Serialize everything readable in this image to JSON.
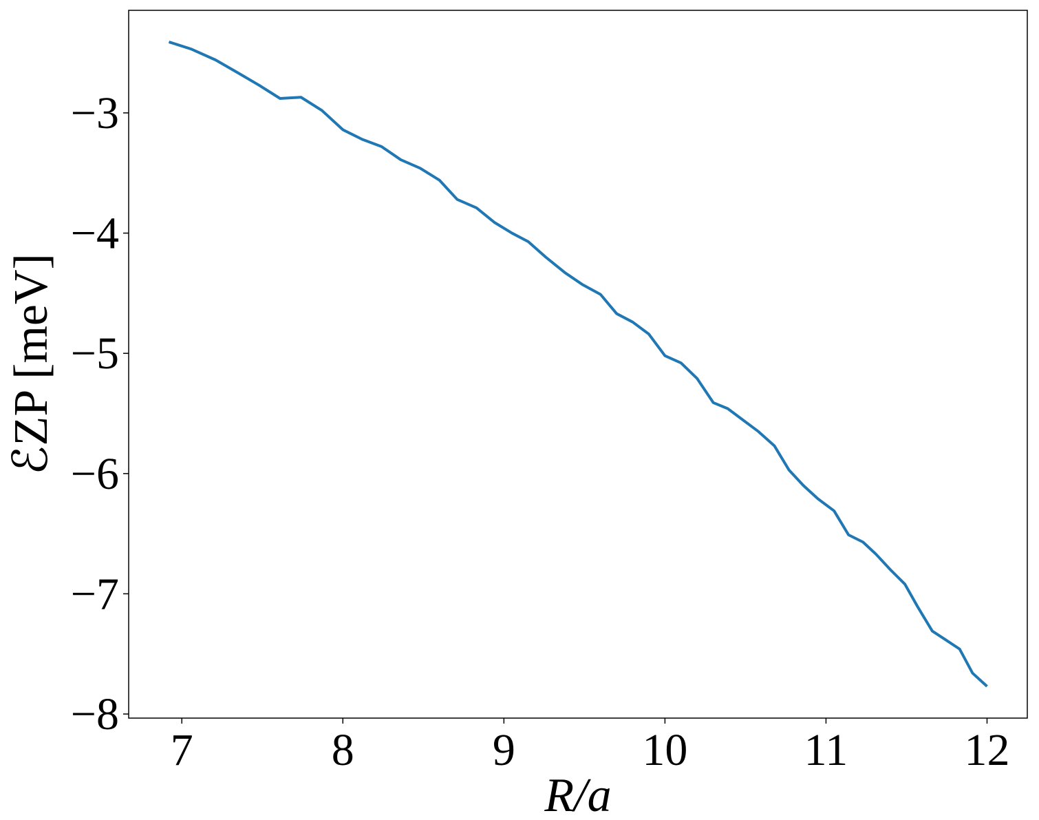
{
  "chart_data": {
    "type": "line",
    "xlabel": "R/a",
    "ylabel": "ℰZP [meV]",
    "x": [
      6.92,
      7.06,
      7.21,
      7.34,
      7.48,
      7.61,
      7.74,
      7.87,
      8.0,
      8.12,
      8.24,
      8.36,
      8.48,
      8.6,
      8.71,
      8.83,
      8.94,
      9.05,
      9.15,
      9.26,
      9.38,
      9.49,
      9.6,
      9.7,
      9.8,
      9.9,
      10.0,
      10.1,
      10.2,
      10.3,
      10.39,
      10.48,
      10.58,
      10.68,
      10.77,
      10.86,
      10.95,
      11.05,
      11.14,
      11.23,
      11.31,
      11.4,
      11.49,
      11.57,
      11.66,
      11.74,
      11.83,
      11.91,
      12.0
    ],
    "series": [
      {
        "name": "ℰZP",
        "color": "#1f77b4",
        "values": [
          -2.41,
          -2.47,
          -2.56,
          -2.66,
          -2.77,
          -2.88,
          -2.87,
          -2.98,
          -3.14,
          -3.22,
          -3.28,
          -3.39,
          -3.46,
          -3.56,
          -3.72,
          -3.79,
          -3.91,
          -4.0,
          -4.07,
          -4.2,
          -4.33,
          -4.43,
          -4.51,
          -4.67,
          -4.74,
          -4.84,
          -5.02,
          -5.08,
          -5.21,
          -5.41,
          -5.46,
          -5.55,
          -5.65,
          -5.77,
          -5.97,
          -6.1,
          -6.21,
          -6.31,
          -6.51,
          -6.57,
          -6.67,
          -6.8,
          -6.92,
          -7.11,
          -7.31,
          -7.38,
          -7.46,
          -7.66,
          -7.77
        ]
      }
    ],
    "xlim": [
      6.67,
      12.25
    ],
    "ylim": [
      -8.034,
      -2.147
    ],
    "xticks": [
      7,
      8,
      9,
      10,
      11,
      12
    ],
    "yticks": [
      {
        "value": -3,
        "label": "−3"
      },
      {
        "value": -4,
        "label": "−4"
      },
      {
        "value": -5,
        "label": "−5"
      },
      {
        "value": -6,
        "label": "−6"
      },
      {
        "value": -7,
        "label": "−7"
      },
      {
        "value": -8,
        "label": "−8"
      }
    ],
    "grid": false
  }
}
